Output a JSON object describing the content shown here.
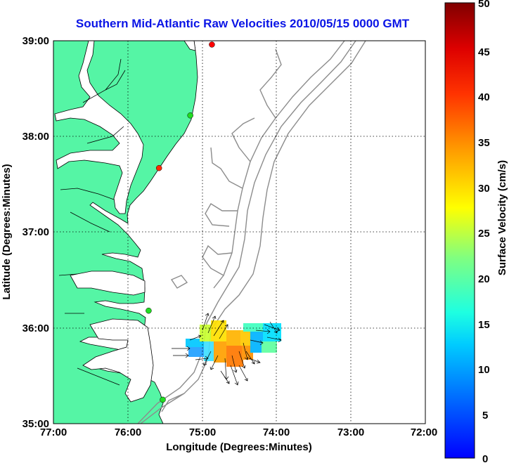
{
  "title": "Southern Mid-Atlantic Raw Velocities 2010/05/15 0000 GMT",
  "x_axis": {
    "label": "Longitude (Degrees:Minutes)",
    "ticks": [
      "77:00",
      "76:00",
      "75:00",
      "74:00",
      "73:00",
      "72:00"
    ]
  },
  "y_axis": {
    "label": "Latitude (Degrees:Minutes)",
    "ticks": [
      "39:00",
      "38:00",
      "37:00",
      "36:00",
      "35:00"
    ]
  },
  "colorbar": {
    "label": "Surface Velocity (cm/s)",
    "ticks": [
      "50",
      "45",
      "40",
      "35",
      "30",
      "25",
      "20",
      "15",
      "10",
      "5",
      "0"
    ],
    "min": 0,
    "max": 50,
    "colormap": "jet"
  },
  "colors": {
    "title": "#0a14e6",
    "land": "#55f5a5",
    "coast": "#000000",
    "bathymetry": "#8c8c8c",
    "grid": "#000000"
  },
  "map": {
    "lon_range": [
      -77,
      -72
    ],
    "lat_range": [
      35,
      39
    ],
    "grid": "dotted"
  },
  "stations": [
    {
      "lon": -74.87,
      "lat": 38.96,
      "color": "#ff0000"
    },
    {
      "lon": -75.16,
      "lat": 38.22,
      "color": "#22dd22"
    },
    {
      "lon": -75.58,
      "lat": 37.67,
      "color": "#ff2a00"
    },
    {
      "lon": -75.72,
      "lat": 36.18,
      "color": "#22dd22"
    },
    {
      "lon": -75.53,
      "lat": 35.25,
      "color": "#22dd22"
    }
  ]
}
